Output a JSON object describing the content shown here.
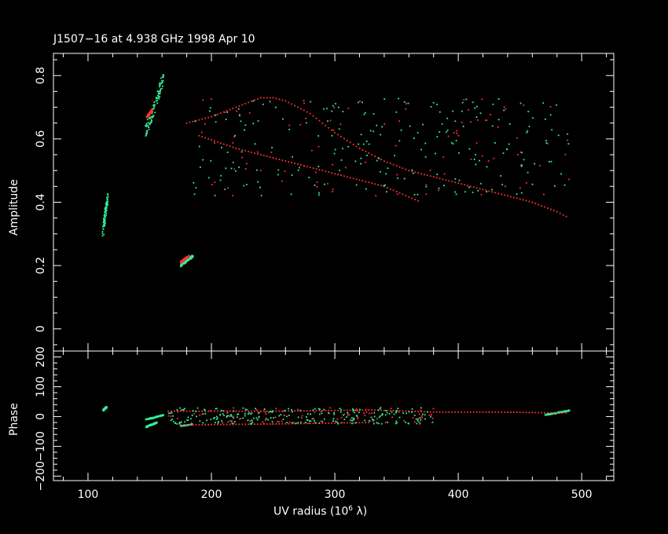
{
  "chart_data": {
    "type": "scatter",
    "title": "J1507−16 at 4.938 GHz 1998 Apr 10",
    "xlabel_prefix": "UV radius  (10",
    "xlabel_exp": "6",
    "xlabel_suffix": " λ)",
    "xlim": [
      72,
      526
    ],
    "xticks": [
      "100",
      "200",
      "300",
      "400",
      "500"
    ],
    "colors": {
      "series_a": "#ff3030",
      "series_b": "#33ee99",
      "axes": "#ffffff",
      "background": "#000000"
    },
    "panels": [
      {
        "ylabel": "Amplitude",
        "ylim": [
          -0.07,
          0.87
        ],
        "yticks": [
          "0",
          "0.2",
          "0.4",
          "0.6",
          "0.8"
        ],
        "clusters": [
          {
            "x": [
              112,
              116
            ],
            "y": [
              0.3,
              0.42
            ],
            "color": "series_b"
          },
          {
            "x": [
              147,
              161
            ],
            "y": [
              0.62,
              0.79
            ],
            "color": "series_b"
          },
          {
            "x": [
              148,
              152
            ],
            "y": [
              0.67,
              0.69
            ],
            "color": "series_a"
          },
          {
            "x": [
              175,
              185
            ],
            "y": [
              0.2,
              0.23
            ],
            "color": "series_b"
          },
          {
            "x": [
              175,
              182
            ],
            "y": [
              0.21,
              0.23
            ],
            "color": "series_a"
          }
        ],
        "curves": [
          {
            "x": [
              180,
              200,
              220,
              240,
              250,
              260,
              280,
              300,
              320,
              340,
              360,
              380,
              400,
              420,
              440,
              460,
              480,
              490
            ],
            "y": [
              0.65,
              0.67,
              0.7,
              0.73,
              0.73,
              0.72,
              0.68,
              0.62,
              0.57,
              0.53,
              0.5,
              0.48,
              0.46,
              0.44,
              0.42,
              0.4,
              0.37,
              0.35
            ],
            "color": "series_a"
          },
          {
            "x": [
              190,
              220,
              250,
              280,
              310,
              340,
              370
            ],
            "y": [
              0.61,
              0.57,
              0.54,
              0.51,
              0.48,
              0.45,
              0.4
            ],
            "color": "series_a"
          }
        ],
        "scatter_region": {
          "x": [
            185,
            490
          ],
          "y": [
            0.42,
            0.73
          ]
        }
      },
      {
        "ylabel": "Phase",
        "ylim": [
          -215,
          220
        ],
        "yticks": [
          "200",
          "100",
          "0",
          "−100",
          "−200"
        ],
        "tickvals": [
          200,
          100,
          0,
          -100,
          -200
        ],
        "clusters": [
          {
            "x": [
              112,
              115
            ],
            "y": [
              20,
              32
            ],
            "color": "series_b"
          },
          {
            "x": [
              147,
              161
            ],
            "y": [
              -10,
              5
            ],
            "color": "series_b"
          },
          {
            "x": [
              147,
              156
            ],
            "y": [
              -35,
              -20
            ],
            "color": "series_b"
          },
          {
            "x": [
              175,
              185
            ],
            "y": [
              -32,
              -26
            ],
            "color": "series_b"
          },
          {
            "x": [
              470,
              490
            ],
            "y": [
              5,
              20
            ],
            "color": "series_b"
          }
        ],
        "curves": [
          {
            "x": [
              165,
              250,
              330,
              380,
              430,
              490
            ],
            "y": [
              18,
              18,
              22,
              15,
              15,
              12
            ],
            "color": "series_a"
          },
          {
            "x": [
              175,
              250,
              330
            ],
            "y": [
              -28,
              -25,
              -20
            ],
            "color": "series_a"
          }
        ],
        "scatter_region": {
          "x": [
            165,
            380
          ],
          "y": [
            -25,
            30
          ]
        }
      }
    ]
  }
}
